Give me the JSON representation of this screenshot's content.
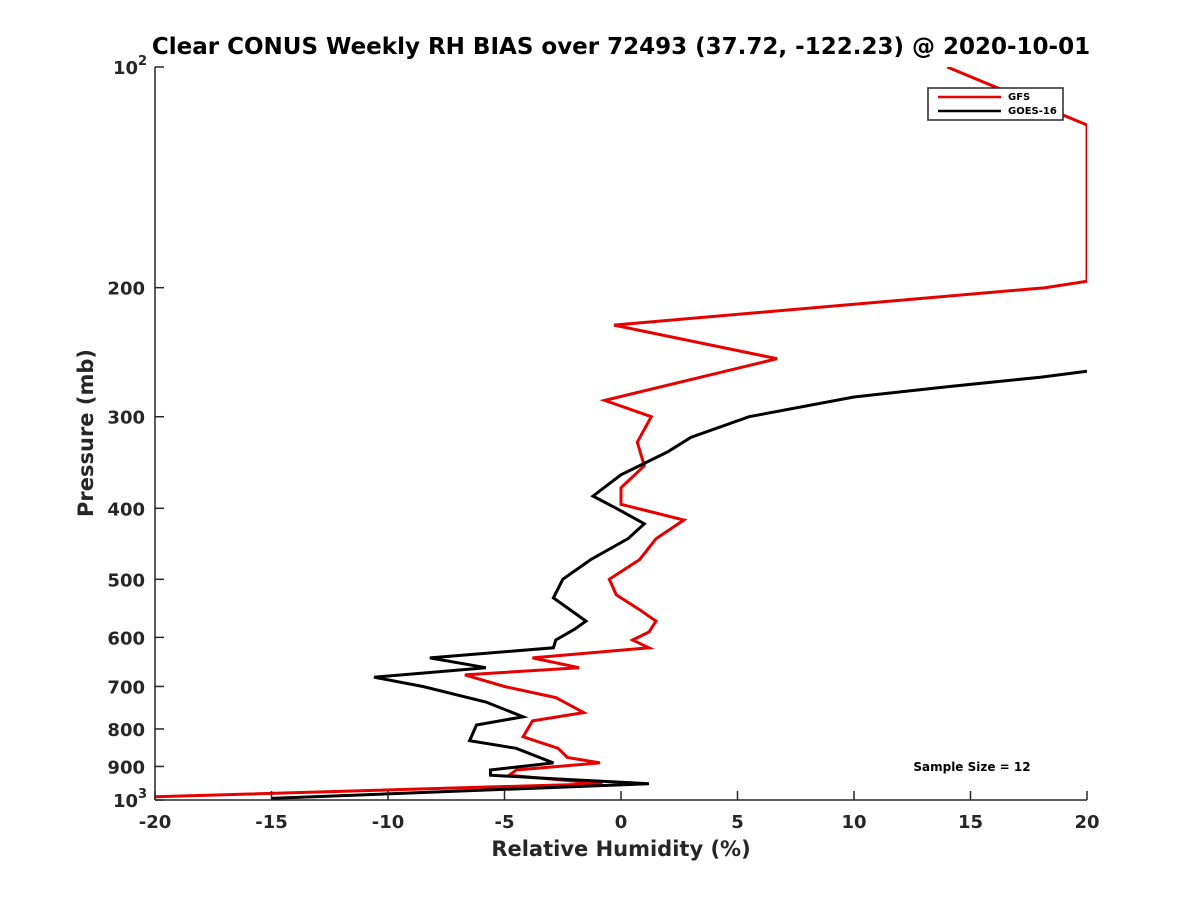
{
  "chart_data": {
    "type": "line",
    "title": "Clear CONUS Weekly RH BIAS over 72493 (37.72, -122.23) @ 2020-10-01",
    "xlabel": "Relative Humidity (%)",
    "ylabel": "Pressure (mb)",
    "xlim": [
      -20,
      20
    ],
    "ylim": [
      1000,
      100
    ],
    "y_scale": "log",
    "y_reversed": true,
    "grid": false,
    "legend_position": "top-right",
    "x_ticks": [
      "-20",
      "-15",
      "-10",
      "-5",
      "0",
      "5",
      "10",
      "15",
      "20"
    ],
    "x_tick_values": [
      -20,
      -15,
      -10,
      -5,
      0,
      5,
      10,
      15,
      20
    ],
    "y_ticks": [
      {
        "value": 100,
        "base": "10",
        "exp": "2"
      },
      {
        "value": 200,
        "base": "200",
        "exp": ""
      },
      {
        "value": 300,
        "base": "300",
        "exp": ""
      },
      {
        "value": 400,
        "base": "400",
        "exp": ""
      },
      {
        "value": 500,
        "base": "500",
        "exp": ""
      },
      {
        "value": 600,
        "base": "600",
        "exp": ""
      },
      {
        "value": 700,
        "base": "700",
        "exp": ""
      },
      {
        "value": 800,
        "base": "800",
        "exp": ""
      },
      {
        "value": 900,
        "base": "900",
        "exp": ""
      },
      {
        "value": 1000,
        "base": "10",
        "exp": "3"
      }
    ],
    "annotation": "Sample Size = 12",
    "series": [
      {
        "name": "GFS",
        "color": "#e60000",
        "points": [
          {
            "x": 14.0,
            "y": 100
          },
          {
            "x": 20.0,
            "y": 120
          },
          {
            "x": 20.0,
            "y": 196
          },
          {
            "x": 18.2,
            "y": 200
          },
          {
            "x": -0.3,
            "y": 225
          },
          {
            "x": 6.7,
            "y": 250
          },
          {
            "x": -0.7,
            "y": 285
          },
          {
            "x": 1.3,
            "y": 300
          },
          {
            "x": 0.7,
            "y": 325
          },
          {
            "x": 1.0,
            "y": 350
          },
          {
            "x": 0.0,
            "y": 375
          },
          {
            "x": 0.0,
            "y": 395
          },
          {
            "x": 2.7,
            "y": 415
          },
          {
            "x": 1.5,
            "y": 440
          },
          {
            "x": 0.8,
            "y": 470
          },
          {
            "x": -0.5,
            "y": 500
          },
          {
            "x": -0.2,
            "y": 525
          },
          {
            "x": 0.8,
            "y": 550
          },
          {
            "x": 1.5,
            "y": 570
          },
          {
            "x": 1.2,
            "y": 590
          },
          {
            "x": 0.5,
            "y": 605
          },
          {
            "x": 1.2,
            "y": 620
          },
          {
            "x": -3.8,
            "y": 640
          },
          {
            "x": -1.8,
            "y": 660
          },
          {
            "x": -6.7,
            "y": 675
          },
          {
            "x": -5.0,
            "y": 700
          },
          {
            "x": -2.8,
            "y": 725
          },
          {
            "x": -1.6,
            "y": 760
          },
          {
            "x": -3.8,
            "y": 780
          },
          {
            "x": -4.2,
            "y": 820
          },
          {
            "x": -2.7,
            "y": 850
          },
          {
            "x": -2.3,
            "y": 875
          },
          {
            "x": -0.9,
            "y": 890
          },
          {
            "x": -4.5,
            "y": 910
          },
          {
            "x": -4.8,
            "y": 925
          },
          {
            "x": -0.8,
            "y": 950
          },
          {
            "x": -20.0,
            "y": 990
          }
        ]
      },
      {
        "name": "GOES-16",
        "color": "#000000",
        "points": [
          {
            "x": 20.0,
            "y": 260
          },
          {
            "x": 18.0,
            "y": 265
          },
          {
            "x": 14.0,
            "y": 273
          },
          {
            "x": 10.0,
            "y": 282
          },
          {
            "x": 5.5,
            "y": 300
          },
          {
            "x": 3.0,
            "y": 320
          },
          {
            "x": 2.0,
            "y": 335
          },
          {
            "x": 0.0,
            "y": 360
          },
          {
            "x": -1.2,
            "y": 385
          },
          {
            "x": -0.2,
            "y": 400
          },
          {
            "x": 1.0,
            "y": 420
          },
          {
            "x": 0.3,
            "y": 440
          },
          {
            "x": -1.3,
            "y": 470
          },
          {
            "x": -2.5,
            "y": 500
          },
          {
            "x": -2.9,
            "y": 530
          },
          {
            "x": -1.5,
            "y": 570
          },
          {
            "x": -2.0,
            "y": 585
          },
          {
            "x": -2.8,
            "y": 605
          },
          {
            "x": -2.9,
            "y": 620
          },
          {
            "x": -8.2,
            "y": 640
          },
          {
            "x": -5.8,
            "y": 660
          },
          {
            "x": -10.6,
            "y": 680
          },
          {
            "x": -8.5,
            "y": 700
          },
          {
            "x": -5.8,
            "y": 735
          },
          {
            "x": -4.2,
            "y": 770
          },
          {
            "x": -6.2,
            "y": 790
          },
          {
            "x": -6.5,
            "y": 830
          },
          {
            "x": -4.5,
            "y": 850
          },
          {
            "x": -2.9,
            "y": 890
          },
          {
            "x": -5.6,
            "y": 910
          },
          {
            "x": -5.6,
            "y": 925
          },
          {
            "x": -3.0,
            "y": 935
          },
          {
            "x": 1.2,
            "y": 950
          },
          {
            "x": -15.0,
            "y": 995
          }
        ]
      }
    ]
  }
}
